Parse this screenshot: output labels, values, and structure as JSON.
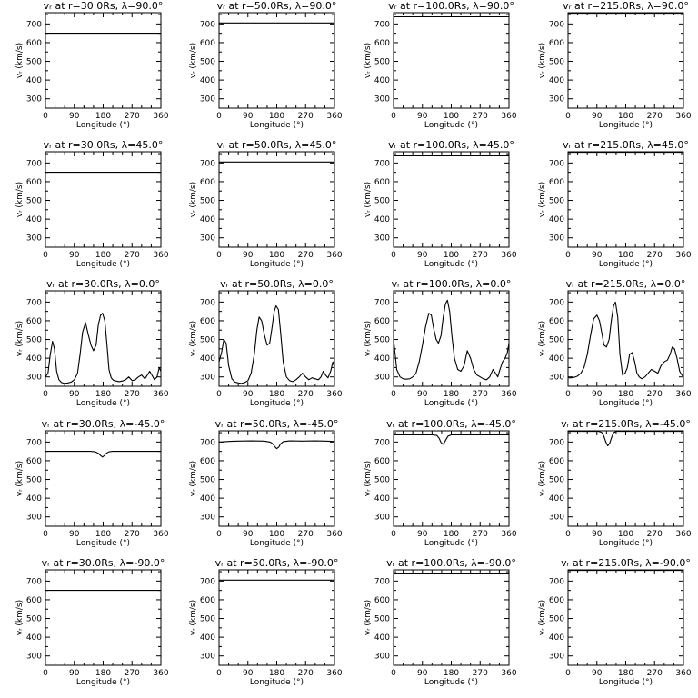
{
  "chart_data": {
    "type": "line",
    "rows": 5,
    "cols": 4,
    "xlabel": "Longitude (°)",
    "ylabel": "vᵣ (km/s)",
    "xlim": [
      0,
      360
    ],
    "ylim": [
      250,
      760
    ],
    "xticks": [
      "0",
      "90",
      "180",
      "270",
      "360"
    ],
    "yticks": [
      "300",
      "400",
      "500",
      "600",
      "700"
    ],
    "panels": [
      {
        "title": "vᵣ at r=30.0Rs, λ=90.0°",
        "x": [
          0,
          360
        ],
        "y": [
          650,
          650
        ]
      },
      {
        "title": "vᵣ at r=50.0Rs, λ=90.0°",
        "x": [
          0,
          360
        ],
        "y": [
          705,
          705
        ]
      },
      {
        "title": "vᵣ at r=100.0Rs, λ=90.0°",
        "x": [
          0,
          360
        ],
        "y": [
          738,
          738
        ]
      },
      {
        "title": "vᵣ at r=215.0Rs, λ=90.0°",
        "x": [
          0,
          360
        ],
        "y": [
          757,
          757
        ]
      },
      {
        "title": "vᵣ at r=30.0Rs, λ=45.0°",
        "x": [
          0,
          360
        ],
        "y": [
          650,
          650
        ]
      },
      {
        "title": "vᵣ at r=50.0Rs, λ=45.0°",
        "x": [
          0,
          360
        ],
        "y": [
          705,
          705
        ]
      },
      {
        "title": "vᵣ at r=100.0Rs, λ=45.0°",
        "x": [
          0,
          360
        ],
        "y": [
          738,
          738
        ]
      },
      {
        "title": "vᵣ at r=215.0Rs, λ=45.0°",
        "x": [
          0,
          360
        ],
        "y": [
          757,
          757
        ]
      },
      {
        "title": "vᵣ at r=30.0Rs, λ=0.0°",
        "x": [
          0,
          8,
          15,
          22,
          28,
          35,
          42,
          50,
          60,
          70,
          80,
          90,
          100,
          108,
          116,
          125,
          133,
          142,
          150,
          158,
          165,
          172,
          178,
          185,
          192,
          198,
          205,
          212,
          220,
          230,
          240,
          250,
          260,
          270,
          280,
          290,
          300,
          310,
          318,
          325,
          332,
          340,
          348,
          355,
          360
        ],
        "y": [
          300,
          320,
          420,
          490,
          450,
          330,
          285,
          270,
          265,
          268,
          272,
          285,
          320,
          420,
          540,
          590,
          530,
          470,
          440,
          470,
          580,
          630,
          640,
          600,
          470,
          340,
          295,
          282,
          278,
          275,
          278,
          285,
          300,
          280,
          285,
          300,
          310,
          290,
          310,
          330,
          310,
          285,
          300,
          350,
          330
        ]
      },
      {
        "title": "vᵣ at r=50.0Rs, λ=0.0°",
        "x": [
          0,
          8,
          15,
          22,
          30,
          40,
          50,
          60,
          70,
          80,
          90,
          100,
          110,
          118,
          125,
          133,
          142,
          150,
          158,
          165,
          172,
          178,
          185,
          192,
          200,
          210,
          220,
          230,
          240,
          250,
          260,
          270,
          280,
          290,
          300,
          310,
          318,
          325,
          332,
          340,
          348,
          355,
          360
        ],
        "y": [
          380,
          430,
          500,
          480,
          360,
          290,
          272,
          268,
          265,
          270,
          280,
          320,
          420,
          550,
          620,
          600,
          520,
          470,
          480,
          560,
          650,
          680,
          660,
          540,
          380,
          300,
          280,
          275,
          285,
          300,
          320,
          300,
          285,
          295,
          290,
          285,
          300,
          330,
          310,
          295,
          330,
          380,
          350
        ]
      },
      {
        "title": "vᵣ at r=100.0Rs, λ=0.0°",
        "x": [
          0,
          5,
          10,
          20,
          30,
          40,
          50,
          60,
          70,
          80,
          90,
          100,
          110,
          118,
          125,
          133,
          140,
          148,
          155,
          162,
          168,
          175,
          182,
          190,
          200,
          210,
          220,
          230,
          240,
          250,
          260,
          270,
          280,
          290,
          300,
          310,
          318,
          325,
          332,
          340,
          348,
          355,
          360
        ],
        "y": [
          500,
          420,
          340,
          300,
          290,
          288,
          290,
          300,
          320,
          380,
          470,
          570,
          640,
          630,
          560,
          500,
          480,
          520,
          620,
          690,
          710,
          650,
          520,
          400,
          340,
          330,
          360,
          440,
          400,
          340,
          310,
          300,
          290,
          285,
          300,
          340,
          320,
          300,
          340,
          380,
          400,
          430,
          480
        ]
      },
      {
        "title": "vᵣ at r=215.0Rs, λ=0.0°",
        "x": [
          0,
          10,
          20,
          30,
          40,
          50,
          60,
          70,
          80,
          90,
          98,
          105,
          112,
          120,
          128,
          135,
          142,
          148,
          155,
          162,
          170,
          178,
          185,
          192,
          200,
          208,
          215,
          222,
          230,
          240,
          250,
          260,
          270,
          280,
          290,
          300,
          310,
          318,
          325,
          332,
          340,
          348,
          355,
          360
        ],
        "y": [
          295,
          295,
          298,
          305,
          320,
          350,
          420,
          520,
          610,
          630,
          600,
          540,
          470,
          460,
          500,
          600,
          680,
          700,
          620,
          420,
          310,
          320,
          350,
          420,
          430,
          380,
          320,
          300,
          290,
          300,
          320,
          340,
          330,
          320,
          360,
          380,
          390,
          420,
          460,
          450,
          400,
          330,
          310,
          300
        ]
      },
      {
        "title": "vᵣ at r=30.0Rs, λ=-45.0°",
        "x": [
          0,
          140,
          155,
          165,
          172,
          178,
          184,
          190,
          198,
          210,
          360
        ],
        "y": [
          650,
          650,
          648,
          640,
          628,
          620,
          628,
          640,
          648,
          650,
          650
        ]
      },
      {
        "title": "vᵣ at r=50.0Rs, λ=-45.0°",
        "x": [
          0,
          30,
          60,
          100,
          140,
          160,
          168,
          174,
          180,
          186,
          192,
          200,
          220,
          260,
          300,
          330,
          360
        ],
        "y": [
          700,
          703,
          705,
          706,
          705,
          700,
          690,
          675,
          665,
          672,
          690,
          702,
          706,
          705,
          706,
          705,
          703
        ]
      },
      {
        "title": "vᵣ at r=100.0Rs, λ=-45.0°",
        "x": [
          0,
          120,
          135,
          142,
          148,
          153,
          158,
          164,
          170,
          180,
          360
        ],
        "y": [
          738,
          738,
          735,
          720,
          698,
          688,
          695,
          715,
          732,
          738,
          738
        ]
      },
      {
        "title": "vᵣ at r=215.0Rs, λ=-45.0°",
        "x": [
          0,
          95,
          105,
          112,
          118,
          124,
          130,
          136,
          142,
          150,
          360
        ],
        "y": [
          757,
          757,
          752,
          730,
          700,
          680,
          695,
          725,
          750,
          757,
          757
        ]
      },
      {
        "title": "vᵣ at r=30.0Rs, λ=-90.0°",
        "x": [
          0,
          360
        ],
        "y": [
          650,
          650
        ]
      },
      {
        "title": "vᵣ at r=50.0Rs, λ=-90.0°",
        "x": [
          0,
          360
        ],
        "y": [
          705,
          705
        ]
      },
      {
        "title": "vᵣ at r=100.0Rs, λ=-90.0°",
        "x": [
          0,
          360
        ],
        "y": [
          738,
          738
        ]
      },
      {
        "title": "vᵣ at r=215.0Rs, λ=-90.0°",
        "x": [
          0,
          360
        ],
        "y": [
          757,
          757
        ]
      }
    ]
  }
}
